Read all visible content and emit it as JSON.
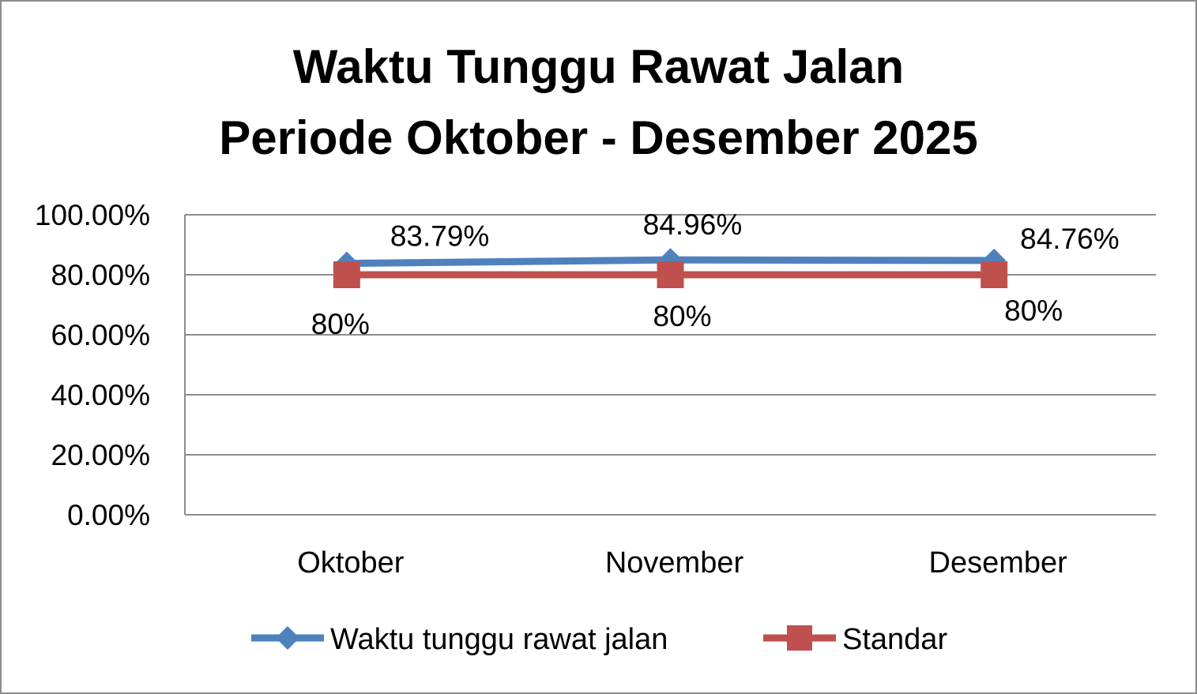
{
  "chart_data": {
    "type": "line",
    "title": [
      "Waktu Tunggu Rawat Jalan",
      "Periode Oktober - Desember 2025"
    ],
    "categories": [
      "Oktober",
      "November",
      "Desember"
    ],
    "ylim": [
      0,
      100
    ],
    "yticks": [
      0,
      20,
      40,
      60,
      80,
      100
    ],
    "ytick_labels": [
      "0.00%",
      "20.00%",
      "40.00%",
      "60.00%",
      "80.00%",
      "100.00%"
    ],
    "grid": true,
    "legend_position": "bottom",
    "series": [
      {
        "name": "Waktu tunggu rawat jalan",
        "values": [
          83.79,
          84.96,
          84.76
        ],
        "labels": [
          "83.79%",
          "84.96%",
          "84.76%"
        ],
        "color": "#4f81bd",
        "marker": "diamond"
      },
      {
        "name": "Standar",
        "values": [
          80,
          80,
          80
        ],
        "labels": [
          "80%",
          "80%",
          "80%"
        ],
        "color": "#c0504d",
        "marker": "square"
      }
    ]
  }
}
